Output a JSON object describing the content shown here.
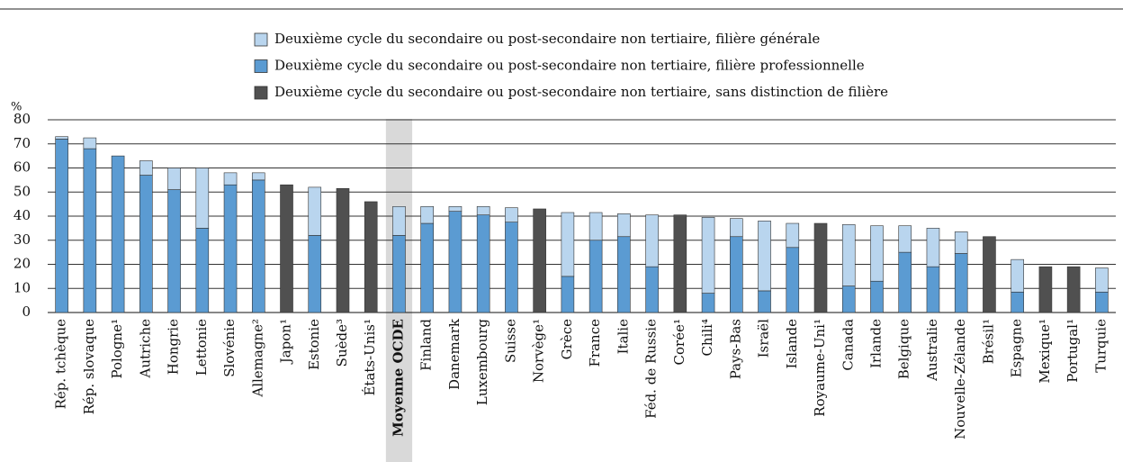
{
  "chart_data": {
    "type": "stacked_bar",
    "ylabel": "%",
    "categories": [
      "Rép. tchèque",
      "Rép. slovaque",
      "Pologne¹",
      "Autriche",
      "Hongrie",
      "Lettonie",
      "Slovénie",
      "Allemagne²",
      "Japon¹",
      "Estonie",
      "Suède³",
      "États-Unis¹",
      "Moyenne OCDE",
      "Finland",
      "Danemark",
      "Luxembourg",
      "Suisse",
      "Norvège¹",
      "Grèce",
      "France",
      "Italie",
      "Féd. de Russie",
      "Corée¹",
      "Chili⁴",
      "Pays-Bas",
      "Israël",
      "Islande",
      "Royaume-Uni¹",
      "Canada",
      "Irlande",
      "Belgique",
      "Australie",
      "Nouvelle-Zélande",
      "Brésil¹",
      "Espagne",
      "Mexique¹",
      "Portugal¹",
      "Turquie"
    ],
    "series": [
      {
        "name": "Deuxième cycle du secondaire ou post-secondaire non tertiaire, filière générale",
        "color": "#b9d5ee",
        "values": [
          1,
          4.5,
          null,
          6,
          9,
          25,
          5,
          3,
          null,
          20,
          null,
          null,
          12,
          7,
          2,
          3.5,
          6,
          null,
          26.5,
          11.5,
          9.5,
          21.5,
          null,
          31.5,
          7.5,
          29,
          10,
          null,
          25.5,
          23,
          11,
          16,
          9,
          null,
          13.5,
          null,
          null,
          10
        ]
      },
      {
        "name": "Deuxième cycle du secondaire ou post-secondaire non tertiaire, filière professionnelle",
        "color": "#5b9bd2",
        "values": [
          72,
          68,
          65,
          57,
          51,
          35,
          53,
          55,
          null,
          32,
          null,
          null,
          32,
          37,
          42,
          40.5,
          37.5,
          null,
          15,
          30,
          31.5,
          19,
          null,
          8,
          31.5,
          9,
          27,
          null,
          11,
          13,
          25,
          19,
          24.5,
          null,
          8.5,
          null,
          null,
          8.5
        ]
      },
      {
        "name": "Deuxième cycle du secondaire ou post-secondaire non tertiaire, sans distinction de filière",
        "color": "#505050",
        "values": [
          null,
          null,
          null,
          null,
          null,
          null,
          null,
          null,
          53,
          null,
          51.5,
          46,
          null,
          null,
          null,
          null,
          null,
          43,
          null,
          null,
          null,
          null,
          40.5,
          null,
          null,
          null,
          null,
          37,
          null,
          null,
          null,
          null,
          null,
          31.5,
          null,
          19,
          19,
          null
        ]
      }
    ],
    "stack_order": [
      1,
      0,
      2
    ],
    "highlight_category": "Moyenne OCDE",
    "ylim": [
      0,
      80
    ],
    "yticks": [
      0,
      10,
      20,
      30,
      40,
      50,
      60,
      70,
      80
    ],
    "grid": true
  }
}
